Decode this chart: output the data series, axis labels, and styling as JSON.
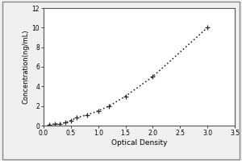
{
  "x": [
    0.1,
    0.2,
    0.3,
    0.4,
    0.5,
    0.6,
    0.8,
    1.0,
    1.2,
    1.5,
    2.0,
    3.0
  ],
  "y": [
    0.1,
    0.15,
    0.2,
    0.3,
    0.5,
    0.8,
    1.1,
    1.5,
    2.0,
    3.0,
    5.0,
    10.0
  ],
  "marker": "+",
  "marker_size": 4,
  "marker_edge_width": 0.9,
  "line_style": "dotted",
  "line_color": "#2b2b2b",
  "line_width": 1.2,
  "marker_color": "#2b2b2b",
  "xlabel": "Optical Density",
  "ylabel": "Concentration(ng/mL)",
  "xlim": [
    0,
    3.5
  ],
  "ylim": [
    0,
    12
  ],
  "xticks": [
    0,
    0.5,
    1.0,
    1.5,
    2.0,
    2.5,
    3.0,
    3.5
  ],
  "yticks": [
    0,
    2,
    4,
    6,
    8,
    10,
    12
  ],
  "xlabel_fontsize": 6.5,
  "ylabel_fontsize": 6,
  "tick_fontsize": 5.5,
  "background_color": "#f0f0f0",
  "plot_bg_color": "#ffffff",
  "outer_border_color": "#888888",
  "inner_border_color": "#555555"
}
